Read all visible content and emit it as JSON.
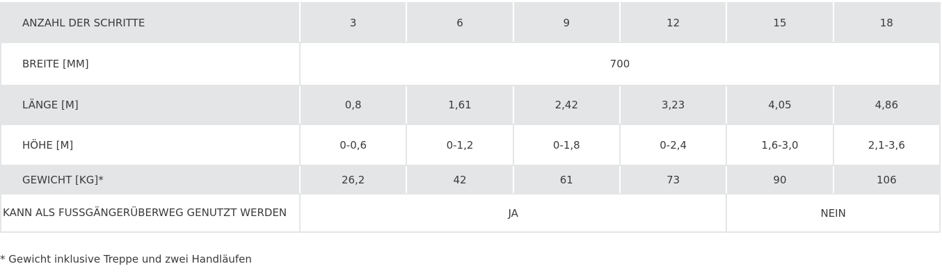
{
  "table": {
    "header": [
      "ANZAHL DER SCHRITTE",
      "3",
      "6",
      "9",
      "12",
      "15",
      "18"
    ],
    "rows": [
      [
        "BREITE [MM]",
        "700"
      ],
      [
        "LÄNGE [M]",
        "0,8",
        "1,61",
        "2,42",
        "3,23",
        "4,05",
        "4,86"
      ],
      [
        "HÖHE [M]",
        "0-0,6",
        "0-1,2",
        "0-1,8",
        "0-2,4",
        "1,6-3,0",
        "2,1-3,6"
      ],
      [
        "GEWICHT [KG]*",
        "26,2",
        "42",
        "61",
        "73",
        "90",
        "106"
      ],
      [
        "KANN ALS FUSSGÄNGERÜBERWEG GENUTZT WERDEN",
        "JA",
        "NEIN"
      ]
    ]
  },
  "footnote": "* Gewicht inklusive Treppe und zwei Handläufen"
}
